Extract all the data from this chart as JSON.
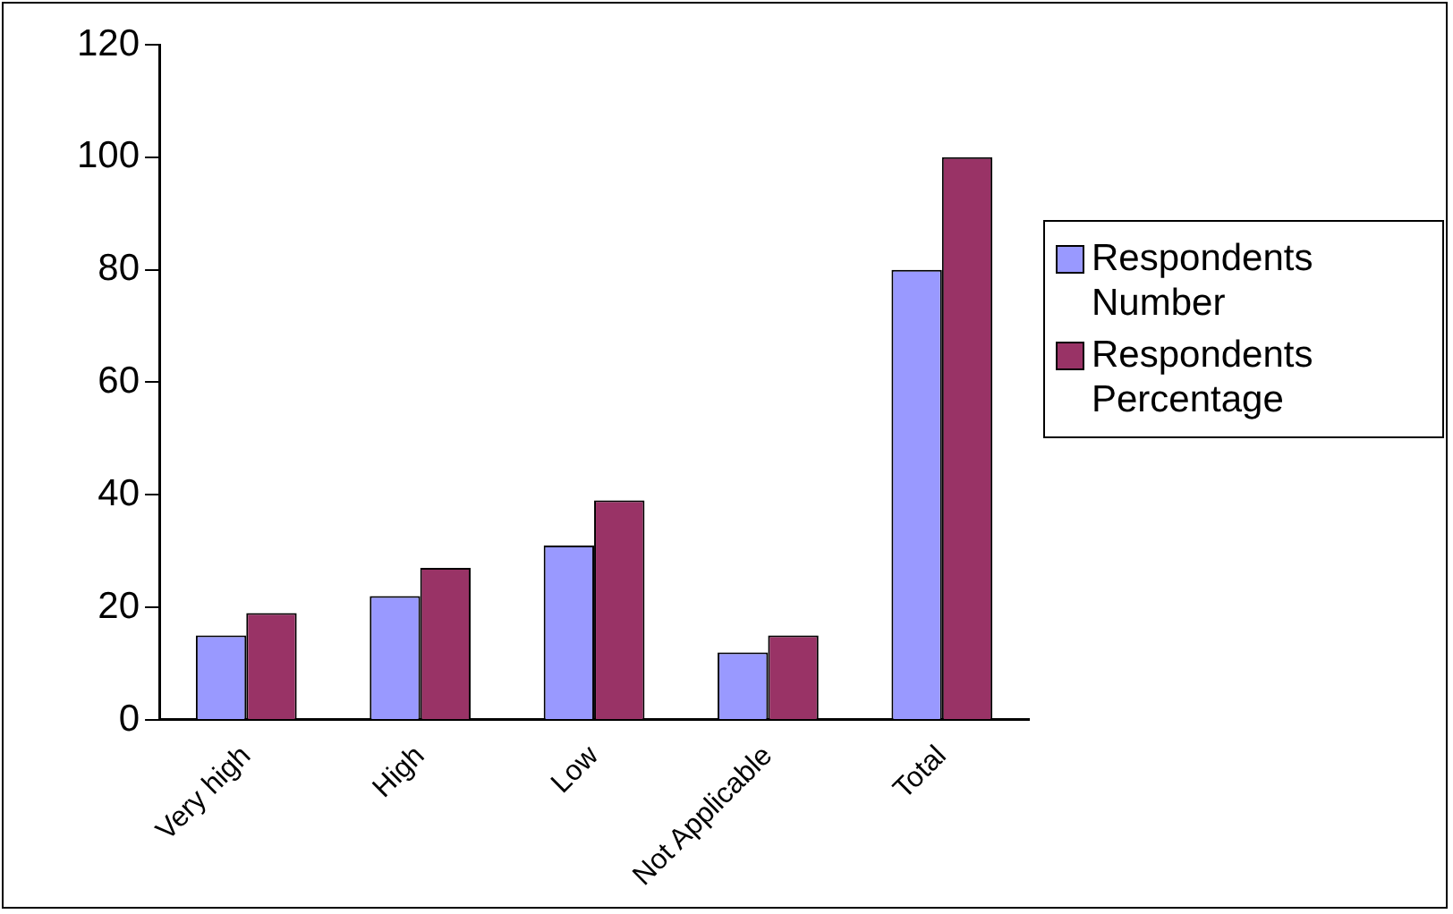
{
  "chart_data": {
    "type": "bar",
    "categories": [
      "Very high",
      "High",
      "Low",
      "Not Applicable",
      "Total"
    ],
    "series": [
      {
        "name": "Respondents Number",
        "color": "#9999ff",
        "values": [
          15,
          22,
          31,
          12,
          80
        ]
      },
      {
        "name": "Respondents Percentage",
        "color": "#993366",
        "values": [
          19,
          27,
          39,
          15,
          100
        ]
      }
    ],
    "ylim": [
      0,
      120
    ],
    "yticks": [
      0,
      20,
      40,
      60,
      80,
      100,
      120
    ],
    "grid": false,
    "legend": "right"
  }
}
